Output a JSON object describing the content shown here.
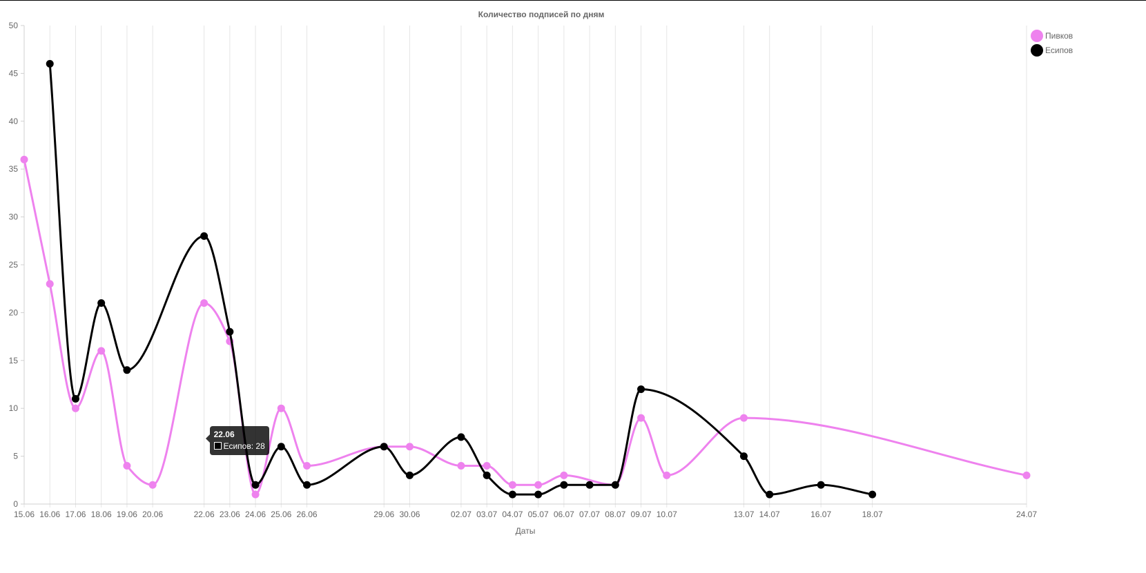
{
  "chart_data": {
    "type": "line",
    "title": "Количество подписей по дням",
    "xlabel": "Даты",
    "ylabel": "",
    "ylim": [
      0,
      50
    ],
    "yticks": [
      0,
      5,
      10,
      15,
      20,
      25,
      30,
      35,
      40,
      45,
      50
    ],
    "grid": "vertical",
    "legend_position": "top-right",
    "categories": [
      "15.06",
      "16.06",
      "17.06",
      "18.06",
      "19.06",
      "20.06",
      "22.06",
      "23.06",
      "24.06",
      "25.06",
      "26.06",
      "29.06",
      "30.06",
      "02.07",
      "03.07",
      "04.07",
      "05.07",
      "06.07",
      "07.07",
      "08.07",
      "09.07",
      "10.07",
      "13.07",
      "14.07",
      "16.07",
      "18.07",
      "24.07"
    ],
    "series": [
      {
        "name": "Пивков",
        "color": "#ee82ee",
        "values": [
          36,
          23,
          10,
          16,
          4,
          2,
          21,
          17,
          1,
          10,
          4,
          6,
          6,
          4,
          4,
          2,
          2,
          3,
          null,
          2,
          9,
          3,
          9,
          null,
          null,
          null,
          3
        ]
      },
      {
        "name": "Есипов",
        "color": "#000000",
        "values": [
          null,
          46,
          11,
          21,
          14,
          null,
          28,
          18,
          2,
          6,
          2,
          6,
          3,
          7,
          3,
          1,
          1,
          2,
          2,
          2,
          12,
          null,
          5,
          1,
          2,
          1,
          null
        ]
      }
    ],
    "tooltip": {
      "title": "22.06",
      "series_name": "Есипов",
      "value": "Есипов: 28"
    }
  }
}
